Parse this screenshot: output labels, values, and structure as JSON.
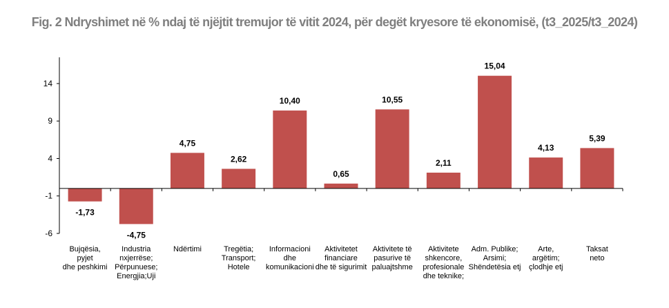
{
  "chart_data": {
    "type": "bar",
    "title": "Fig. 2 Ndryshimet në % ndaj të njëjtit tremujor të vitit 2024, për degët kryesore të ekonomisë, (t3_2025/t3_2024)",
    "xlabel": "",
    "ylabel": "",
    "ylim": [
      -6,
      17.5
    ],
    "yticks": [
      -6,
      -1,
      4,
      9,
      14
    ],
    "grid": false,
    "bar_color": "#c0504d",
    "categories": [
      [
        "Bujqësia,",
        "pyjet",
        "dhe peshkimi"
      ],
      [
        "Industria",
        "nxjerrëse;",
        "Përpunuese;",
        "Energjia;Uji"
      ],
      [
        "Ndërtimi"
      ],
      [
        "Tregëtia;",
        "Transport;",
        "Hotele"
      ],
      [
        "Informacioni",
        "dhe",
        "komunikacioni"
      ],
      [
        "Aktivitetet",
        "financiare",
        "dhe të sigurimit"
      ],
      [
        "Aktivitete të",
        "pasurive të",
        "paluajtshme"
      ],
      [
        "Aktivitete",
        "shkencore,",
        "profesionale",
        "dhe teknike;"
      ],
      [
        "Adm. Publike;",
        "Arsimi;",
        "Shëndetësia etj"
      ],
      [
        "Arte,",
        "argëtim;",
        "çlodhje etj"
      ],
      [
        "Taksat",
        "neto"
      ]
    ],
    "values": [
      -1.73,
      -4.75,
      4.75,
      2.62,
      10.4,
      0.65,
      10.55,
      2.11,
      15.04,
      4.13,
      5.39
    ],
    "value_labels": [
      "-1,73",
      "-4,75",
      "4,75",
      "2,62",
      "10,40",
      "0,65",
      "10,55",
      "2,11",
      "15,04",
      "4,13",
      "5,39"
    ]
  }
}
